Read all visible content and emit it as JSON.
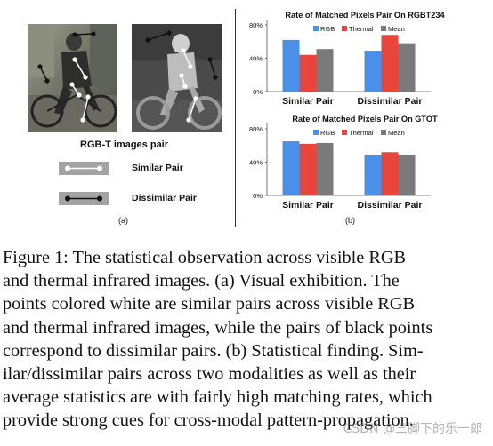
{
  "panel_a": {
    "image_pair_label": "RGB-T images pair",
    "legend": [
      {
        "label": "Similar Pair",
        "line_color": "#ffffff",
        "dot_color": "#ffffff"
      },
      {
        "label": "Dissimilar Pair",
        "line_color": "#111111",
        "dot_color": "#111111"
      }
    ],
    "sublabel": "(a)"
  },
  "panel_b": {
    "sublabel": "(b)"
  },
  "chart_data": [
    {
      "type": "bar",
      "title": "Rate of Matched Pixels Pair On RGBT234",
      "categories": [
        "Similar Pair",
        "Dissimilar Pair"
      ],
      "series": [
        {
          "name": "RGB",
          "color": "#4a90e8",
          "values": [
            62,
            49
          ]
        },
        {
          "name": "Thermal",
          "color": "#e8453c",
          "values": [
            44,
            68
          ]
        },
        {
          "name": "Mean",
          "color": "#7a7a7a",
          "values": [
            51,
            58
          ]
        }
      ],
      "ylim": [
        0,
        80
      ],
      "yticks": [
        "0%",
        "40%",
        "80%"
      ],
      "ytick_values": [
        0,
        40,
        80
      ],
      "legend_position": "top"
    },
    {
      "type": "bar",
      "title": "Rate of Matched Pixels Pair On GTOT",
      "categories": [
        "Similar Pair",
        "Dissimilar Pair"
      ],
      "series": [
        {
          "name": "RGB",
          "color": "#4a90e8",
          "values": [
            65,
            48
          ]
        },
        {
          "name": "Thermal",
          "color": "#e8453c",
          "values": [
            62,
            52
          ]
        },
        {
          "name": "Mean",
          "color": "#7a7a7a",
          "values": [
            63,
            49
          ]
        }
      ],
      "ylim": [
        0,
        80
      ],
      "yticks": [
        "0%",
        "40%",
        "80%"
      ],
      "ytick_values": [
        0,
        40,
        80
      ],
      "legend_position": "top"
    }
  ],
  "caption": {
    "lines": [
      "Figure 1:  The statistical observation across visible RGB",
      "and thermal infrared images.  (a) Visual exhibition.  The",
      "points colored white are similar pairs across visible RGB",
      "and thermal infrared images, while the pairs of black points",
      "correspond to dissimilar pairs.  (b) Statistical finding.  Sim-",
      "ilar/dissimilar pairs across two modalities as well as their",
      "average statistics are with fairly high matching rates, which",
      "provide strong cues for cross-modal pattern-propagation."
    ]
  },
  "watermark": "CSDN @三脚下的乐一郎"
}
